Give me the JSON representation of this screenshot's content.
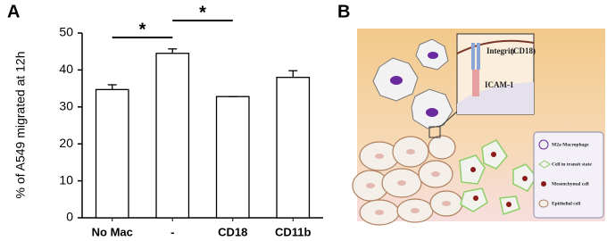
{
  "panel_labels": [
    "A",
    "B"
  ],
  "chart_data": {
    "type": "bar",
    "y_label": "% of A549 migrated at 12h",
    "categories": [
      "No Mac",
      "-",
      "CD18",
      "CD11b"
    ],
    "values": [
      34.7,
      44.5,
      32.8,
      38.0
    ],
    "errors": [
      1.3,
      1.2,
      0,
      1.8
    ],
    "color": "#ffffff",
    "ylim": [
      0,
      50
    ],
    "yticks": [
      0,
      10,
      20,
      30,
      40,
      50
    ],
    "annotations": [
      "*",
      "*"
    ]
  },
  "diagram": {
    "inset_labels": [
      "Integrin",
      "(CD18)",
      "ICAM-1"
    ],
    "legend": [
      "M2a Macrophage",
      "Cell in transit state",
      "Mesenchymal cell",
      "Epithelial cell"
    ]
  }
}
